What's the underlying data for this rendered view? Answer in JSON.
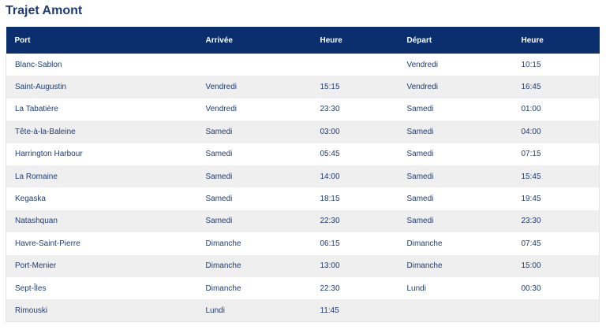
{
  "page": {
    "title": "Trajet Amont"
  },
  "table": {
    "headers": [
      "Port",
      "Arrivée",
      "Heure",
      "Départ",
      "Heure"
    ],
    "rows": [
      [
        "Blanc-Sablon",
        "",
        "",
        "Vendredi",
        "10:15"
      ],
      [
        "Saint-Augustin",
        "Vendredi",
        "15:15",
        "Vendredi",
        "16:45"
      ],
      [
        "La Tabatière",
        "Vendredi",
        "23:30",
        "Samedi",
        "01:00"
      ],
      [
        "Tête-à-la-Baleine",
        "Samedi",
        "03:00",
        "Samedi",
        "04:00"
      ],
      [
        "Harrington Harbour",
        "Samedi",
        "05:45",
        "Samedi",
        "07:15"
      ],
      [
        "La Romaine",
        "Samedi",
        "14:00",
        "Samedi",
        "15:45"
      ],
      [
        "Kegaska",
        "Samedi",
        "18:15",
        "Samedi",
        "19:45"
      ],
      [
        "Natashquan",
        "Samedi",
        "22:30",
        "Samedi",
        "23:30"
      ],
      [
        "Havre-Saint-Pierre",
        "Dimanche",
        "06:15",
        "Dimanche",
        "07:45"
      ],
      [
        "Port-Menier",
        "Dimanche",
        "13:00",
        "Dimanche",
        "15:00"
      ],
      [
        "Sept-Îles",
        "Dimanche",
        "22:30",
        "Lundi",
        "00:30"
      ],
      [
        "Rimouski",
        "Lundi",
        "11:45",
        "",
        ""
      ]
    ]
  },
  "colors": {
    "header_background": "#0b2f6e",
    "header_text": "#ffffff",
    "title_text": "#1f3c72",
    "cell_text": "#1f3c72",
    "stripe_background": "#efefef"
  }
}
